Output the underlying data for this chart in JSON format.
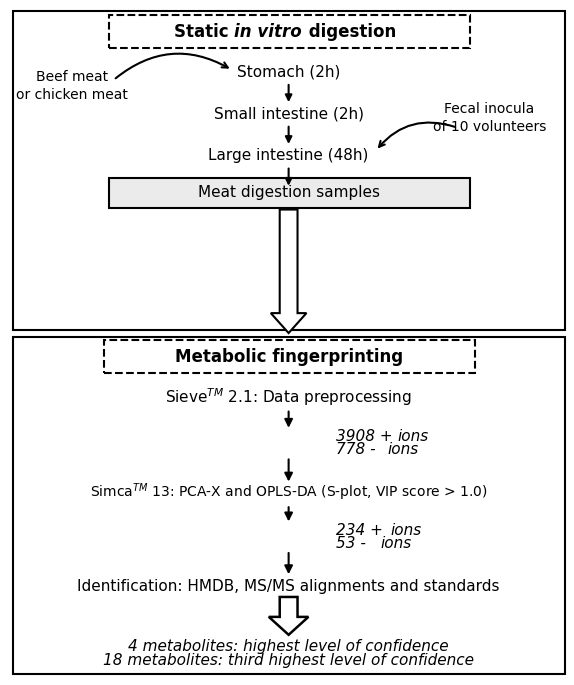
{
  "fig_width": 5.74,
  "fig_height": 6.85,
  "bg_color": "#ffffff",
  "top_panel": {
    "title_bold": "Static ",
    "title_italic": "in vitro",
    "title_suffix": " digestion",
    "stomach": "Stomach (2h)",
    "small_intestine": "Small intestine (2h)",
    "large_intestine": "Large intestine (48h)",
    "meat_box": "Meat digestion samples",
    "beef_label": "Beef meat\nor chicken meat",
    "fecal_label": "Fecal inocula\nof 10 volunteers"
  },
  "bottom_panel": {
    "title": "Metabolic fingerprinting",
    "sieve_line": "Sieve$^{TM}$ 2.1: Data preprocessing",
    "ions1_line1": "3908 + ",
    "ions1_line2": "778 - ",
    "ions_word": "ions",
    "simca_line": "Simca$^{TM}$ 13: PCA-X and OPLS-DA (S-plot, VIP score > 1.0)",
    "ions2_line1": "234 + ",
    "ions2_line2": "53 - ",
    "id_line": "Identification: HMDB, MS/MS alignments and standards",
    "result1": "4 metabolites: highest level of confidence",
    "result2": "18 metabolites: third highest level of confidence"
  }
}
